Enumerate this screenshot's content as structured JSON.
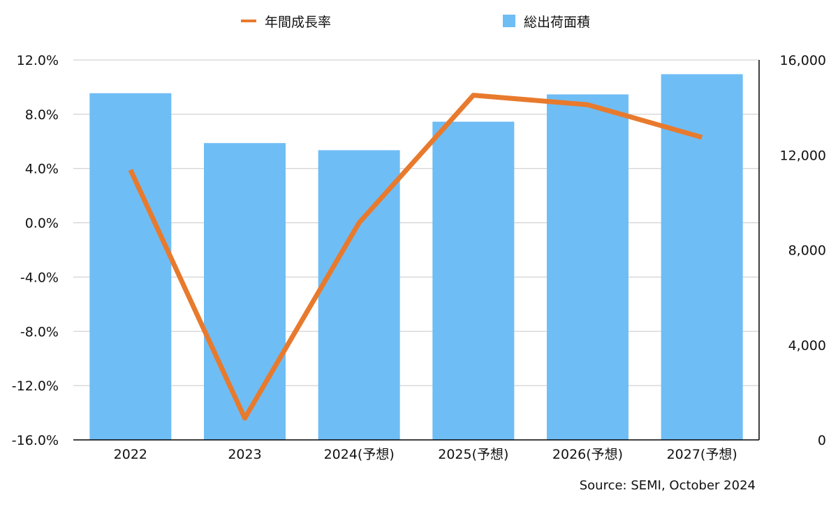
{
  "legend": {
    "line_label": "年間成長率",
    "bar_label": "総出荷面積"
  },
  "source": "Source: SEMI, October 2024",
  "colors": {
    "bar": "#6FBDF5",
    "line": "#E87A2D",
    "grid": "#c8c8c8",
    "axis": "#000000"
  },
  "chart_data": {
    "type": "bar",
    "title": "",
    "categories": [
      "2022",
      "2023",
      "2024(予想)",
      "2025(予想)",
      "2026(予想)",
      "2027(予想)"
    ],
    "series": [
      {
        "name": "総出荷面積",
        "type": "bar",
        "axis": "right",
        "values": [
          14600,
          12500,
          12200,
          13400,
          14550,
          15400
        ]
      },
      {
        "name": "年間成長率",
        "type": "line",
        "axis": "left",
        "values": [
          3.9,
          -14.4,
          0,
          9.4,
          8.7,
          6.3
        ]
      }
    ],
    "y_left": {
      "ylim": [
        -16,
        12
      ],
      "ticks": [
        -16,
        -12,
        -8,
        -4,
        0,
        4,
        8,
        12
      ],
      "tick_labels": [
        "-16.0%",
        "-12.0%",
        "-8.0%",
        "-4.0%",
        "0.0%",
        "4.0%",
        "8.0%",
        "12.0%"
      ]
    },
    "y_right": {
      "ylim": [
        0,
        16000
      ],
      "ticks": [
        0,
        4000,
        8000,
        12000,
        16000
      ],
      "tick_labels": [
        "0",
        "4,000",
        "8,000",
        "12,000",
        "16,000"
      ]
    },
    "grid": true,
    "legend_position": "top-center"
  }
}
